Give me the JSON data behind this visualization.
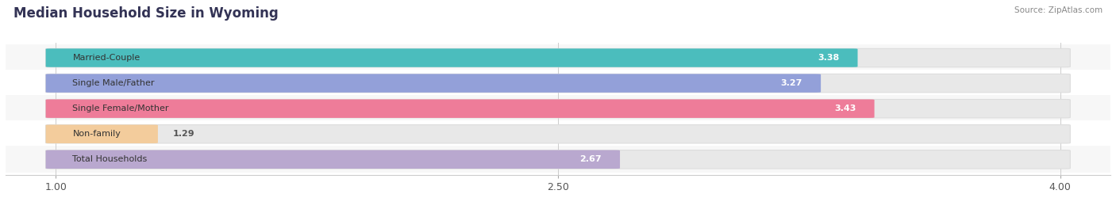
{
  "title": "Median Household Size in Wyoming",
  "source": "Source: ZipAtlas.com",
  "categories": [
    "Married-Couple",
    "Single Male/Father",
    "Single Female/Mother",
    "Non-family",
    "Total Households"
  ],
  "values": [
    3.38,
    3.27,
    3.43,
    1.29,
    2.67
  ],
  "bar_colors": [
    "#35b8b8",
    "#8896d8",
    "#ef6d8e",
    "#f5c992",
    "#b39fcc"
  ],
  "bar_bg_color": "#f0f0f0",
  "xmin": 1.0,
  "xmax": 4.0,
  "xlim_left": 0.85,
  "xlim_right": 4.15,
  "xticks": [
    1.0,
    2.5,
    4.0
  ],
  "xlabel_fontsize": 9,
  "title_fontsize": 12,
  "value_fontsize": 8,
  "label_fontsize": 8,
  "bar_height": 0.7,
  "row_bg_color": "#f7f7f7",
  "row_alt_color": "#ffffff",
  "fig_bg_color": "#ffffff"
}
